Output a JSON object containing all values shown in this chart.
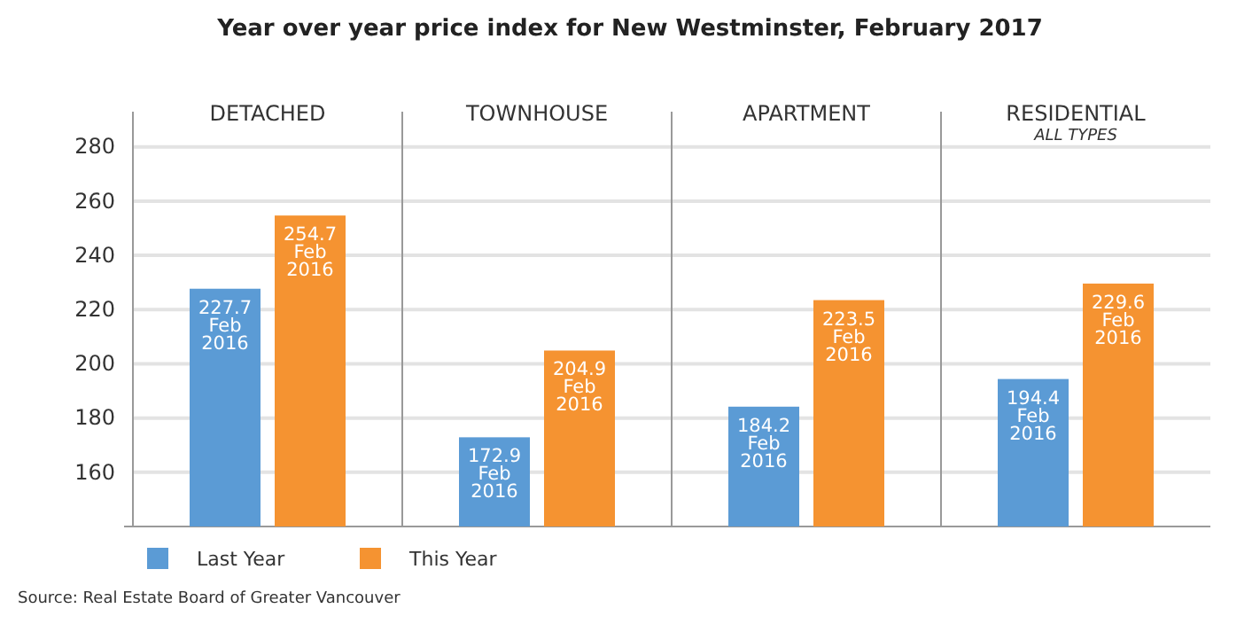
{
  "chart_data": {
    "type": "bar",
    "title": "Year over year price index for New Westminster, February 2017",
    "categories": [
      "DETACHED",
      "TOWNHOUSE",
      "APARTMENT",
      "RESIDENTIAL\nALL TYPES"
    ],
    "series": [
      {
        "name": "Last Year",
        "color": "#5b9bd5",
        "values": [
          227.7,
          172.9,
          184.2,
          194.4
        ],
        "value_labels": [
          "227.7\nFeb\n2016",
          "172.9\nFeb\n2016",
          "184.2\nFeb\n2016",
          "194.4\nFeb\n2016"
        ]
      },
      {
        "name": "This Year",
        "color": "#f59331",
        "values": [
          254.7,
          204.9,
          223.5,
          229.6
        ],
        "value_labels": [
          "254.7\nFeb\n2016",
          "204.9\nFeb\n2016",
          "223.5\nFeb\n2016",
          "229.6\nFeb\n2016"
        ]
      }
    ],
    "ylim": [
      140,
      293
    ],
    "yticks": [
      160,
      180,
      200,
      220,
      240,
      260,
      280
    ],
    "grid": "y",
    "legend": "bottom left",
    "annotations": [
      "Source: Real Estate Board of Greater Vancouver"
    ]
  }
}
